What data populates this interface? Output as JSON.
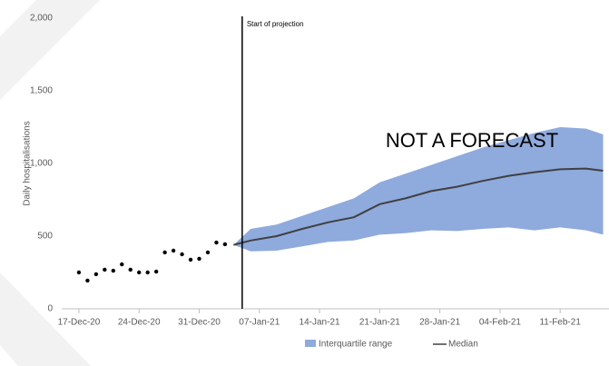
{
  "chart_data": {
    "type": "line",
    "ylabel": "Daily hospitalisations",
    "annotations": [
      {
        "text": "Start of projection",
        "x": "2021-01-05"
      },
      {
        "text": "NOT A FORECAST"
      }
    ],
    "xlim": [
      "2020-12-15",
      "2021-02-17"
    ],
    "xticks": [
      {
        "value": "2020-12-17",
        "label": "17-Dec-20"
      },
      {
        "value": "2020-12-24",
        "label": "24-Dec-20"
      },
      {
        "value": "2020-12-31",
        "label": "31-Dec-20"
      },
      {
        "value": "2021-01-07",
        "label": "07-Jan-21"
      },
      {
        "value": "2021-01-14",
        "label": "14-Jan-21"
      },
      {
        "value": "2021-01-21",
        "label": "21-Jan-21"
      },
      {
        "value": "2021-01-28",
        "label": "28-Jan-21"
      },
      {
        "value": "2021-02-04",
        "label": "04-Feb-21"
      },
      {
        "value": "2021-02-11",
        "label": "11-Feb-21"
      }
    ],
    "ylim": [
      0,
      2000
    ],
    "yticks": [
      0,
      500,
      {
        "value": 1000,
        "label": "1,000"
      },
      {
        "value": 1500,
        "label": "1,500"
      },
      {
        "value": 2000,
        "label": "2,000"
      }
    ],
    "grid": false,
    "series": [
      {
        "color": "#000000",
        "x": [
          "2020-12-17",
          "2020-12-18",
          "2020-12-19",
          "2020-12-20",
          "2020-12-21",
          "2020-12-22",
          "2020-12-23",
          "2020-12-24",
          "2020-12-25",
          "2020-12-26",
          "2020-12-27",
          "2020-12-28",
          "2020-12-29",
          "2020-12-30",
          "2020-12-31",
          "2021-01-01",
          "2021-01-02",
          "2021-01-03"
        ],
        "values": [
          250,
          194,
          238,
          269,
          262,
          306,
          269,
          250,
          250,
          256,
          388,
          400,
          375,
          338,
          344,
          388,
          456,
          444
        ]
      },
      {
        "name": "Interquartile range",
        "color": "#8faadc",
        "x": [
          "2021-01-04",
          "2021-01-06",
          "2021-01-09",
          "2021-01-12",
          "2021-01-15",
          "2021-01-18",
          "2021-01-21",
          "2021-01-24",
          "2021-01-27",
          "2021-01-30",
          "2021-02-02",
          "2021-02-05",
          "2021-02-08",
          "2021-02-11",
          "2021-02-14",
          "2021-02-16"
        ],
        "upper": [
          440,
          550,
          580,
          640,
          700,
          760,
          870,
          930,
          990,
          1050,
          1110,
          1160,
          1210,
          1250,
          1240,
          1200
        ],
        "lower": [
          440,
          395,
          400,
          430,
          460,
          470,
          510,
          520,
          540,
          535,
          550,
          560,
          540,
          560,
          540,
          510
        ]
      },
      {
        "name": "Median",
        "color": "#404040",
        "x": [
          "2021-01-04",
          "2021-01-06",
          "2021-01-09",
          "2021-01-12",
          "2021-01-15",
          "2021-01-18",
          "2021-01-21",
          "2021-01-24",
          "2021-01-27",
          "2021-01-30",
          "2021-02-02",
          "2021-02-05",
          "2021-02-08",
          "2021-02-11",
          "2021-02-14",
          "2021-02-16"
        ],
        "values": [
          440,
          470,
          500,
          550,
          595,
          630,
          720,
          760,
          810,
          840,
          880,
          915,
          940,
          960,
          965,
          950
        ]
      }
    ]
  }
}
